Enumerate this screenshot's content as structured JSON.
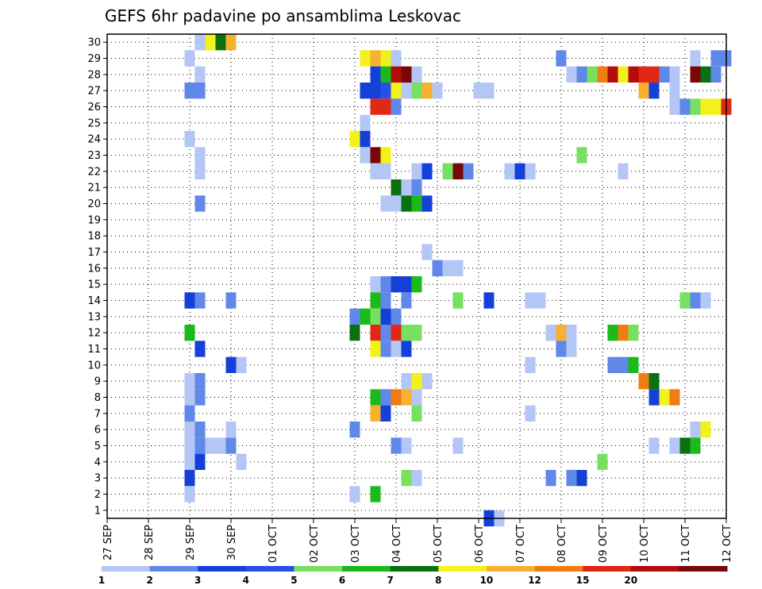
{
  "chart_data": {
    "type": "heatmap",
    "title": "GEFS 6hr padavine po ansamblima Leskovac",
    "x_tick_labels": [
      "27 SEP",
      "28 SEP",
      "29 SEP",
      "30 SEP",
      "01 OCT",
      "02 OCT",
      "03 OCT",
      "04 OCT",
      "05 OCT",
      "06 OCT",
      "07 OCT",
      "08 OCT",
      "09 OCT",
      "10 OCT",
      "11 OCT",
      "12 OCT"
    ],
    "y_tick_labels": [
      "1",
      "2",
      "3",
      "4",
      "5",
      "6",
      "7",
      "8",
      "9",
      "10",
      "11",
      "12",
      "13",
      "14",
      "15",
      "16",
      "17",
      "18",
      "19",
      "20",
      "21",
      "22",
      "23",
      "24",
      "25",
      "26",
      "27",
      "28",
      "29",
      "30"
    ],
    "xlim": [
      0,
      15
    ],
    "ylim": [
      0.5,
      30.5
    ],
    "time_step_days": 0.25,
    "grid": true,
    "colorbar": {
      "placement": "bottom",
      "labels": [
        "1",
        "2",
        "3",
        "4",
        "5",
        "6",
        "7",
        "8",
        "10",
        "12",
        "15",
        "20"
      ],
      "colors": [
        "#b4c6f6",
        "#6088e8",
        "#1440d8",
        "#2850e8",
        "#78e060",
        "#1aba1a",
        "#0a7010",
        "#f2f21a",
        "#f8b030",
        "#f07c14",
        "#e02814",
        "#b40c0c",
        "#780808"
      ]
    },
    "cells_note": "each cell: [x_day_offset_from_27_SEP, member, color_class_index]",
    "cells": [
      [
        2.25,
        30,
        0
      ],
      [
        2.5,
        30,
        7
      ],
      [
        2.75,
        30,
        6
      ],
      [
        3.0,
        30,
        8
      ],
      [
        2.0,
        29,
        0
      ],
      [
        6.25,
        29,
        7
      ],
      [
        6.5,
        29,
        8
      ],
      [
        6.75,
        29,
        7
      ],
      [
        7.0,
        29,
        0
      ],
      [
        11.0,
        29,
        1
      ],
      [
        14.25,
        29,
        0
      ],
      [
        14.75,
        29,
        1
      ],
      [
        15.0,
        29,
        1
      ],
      [
        2.25,
        28,
        0
      ],
      [
        6.5,
        28,
        2
      ],
      [
        6.75,
        28,
        5
      ],
      [
        7.0,
        28,
        11
      ],
      [
        7.25,
        28,
        12
      ],
      [
        7.5,
        28,
        0
      ],
      [
        11.25,
        28,
        0
      ],
      [
        11.5,
        28,
        1
      ],
      [
        11.75,
        28,
        4
      ],
      [
        12.0,
        28,
        9
      ],
      [
        12.25,
        28,
        11
      ],
      [
        12.5,
        28,
        7
      ],
      [
        12.75,
        28,
        11
      ],
      [
        13.0,
        28,
        10
      ],
      [
        13.25,
        28,
        10
      ],
      [
        13.5,
        28,
        1
      ],
      [
        13.75,
        28,
        0
      ],
      [
        14.25,
        28,
        12
      ],
      [
        14.5,
        28,
        6
      ],
      [
        14.75,
        28,
        1
      ],
      [
        2.0,
        27,
        1
      ],
      [
        2.25,
        27,
        1
      ],
      [
        6.25,
        27,
        2
      ],
      [
        6.5,
        27,
        2
      ],
      [
        6.75,
        27,
        3
      ],
      [
        7.0,
        27,
        7
      ],
      [
        7.25,
        27,
        0
      ],
      [
        7.5,
        27,
        4
      ],
      [
        7.75,
        27,
        8
      ],
      [
        8.0,
        27,
        0
      ],
      [
        9.0,
        27,
        0
      ],
      [
        9.25,
        27,
        0
      ],
      [
        13.0,
        27,
        8
      ],
      [
        13.25,
        27,
        2
      ],
      [
        13.75,
        27,
        0
      ],
      [
        6.5,
        26,
        10
      ],
      [
        6.75,
        26,
        10
      ],
      [
        7.0,
        26,
        1
      ],
      [
        13.75,
        26,
        0
      ],
      [
        14.0,
        26,
        1
      ],
      [
        14.25,
        26,
        4
      ],
      [
        14.5,
        26,
        7
      ],
      [
        14.75,
        26,
        7
      ],
      [
        15.0,
        26,
        10
      ],
      [
        6.25,
        25,
        0
      ],
      [
        2.0,
        24,
        0
      ],
      [
        6.0,
        24,
        7
      ],
      [
        6.25,
        24,
        2
      ],
      [
        2.25,
        23,
        0
      ],
      [
        6.25,
        23,
        0
      ],
      [
        6.5,
        23,
        12
      ],
      [
        6.75,
        23,
        7
      ],
      [
        11.5,
        23,
        4
      ],
      [
        2.25,
        22,
        0
      ],
      [
        6.5,
        22,
        0
      ],
      [
        6.75,
        22,
        0
      ],
      [
        7.5,
        22,
        0
      ],
      [
        7.75,
        22,
        2
      ],
      [
        8.25,
        22,
        4
      ],
      [
        8.5,
        22,
        12
      ],
      [
        8.75,
        22,
        1
      ],
      [
        9.75,
        22,
        0
      ],
      [
        10.0,
        22,
        2
      ],
      [
        10.25,
        22,
        0
      ],
      [
        12.5,
        22,
        0
      ],
      [
        7.0,
        21,
        6
      ],
      [
        7.25,
        21,
        0
      ],
      [
        7.5,
        21,
        1
      ],
      [
        2.25,
        20,
        1
      ],
      [
        6.75,
        20,
        0
      ],
      [
        7.0,
        20,
        0
      ],
      [
        7.25,
        20,
        6
      ],
      [
        7.5,
        20,
        5
      ],
      [
        7.75,
        20,
        2
      ],
      [
        7.75,
        17,
        0
      ],
      [
        8.0,
        16,
        1
      ],
      [
        8.25,
        16,
        0
      ],
      [
        8.5,
        16,
        0
      ],
      [
        6.5,
        15,
        0
      ],
      [
        6.75,
        15,
        1
      ],
      [
        7.0,
        15,
        2
      ],
      [
        7.25,
        15,
        2
      ],
      [
        7.5,
        15,
        5
      ],
      [
        2.0,
        14,
        2
      ],
      [
        2.25,
        14,
        1
      ],
      [
        3.0,
        14,
        1
      ],
      [
        6.5,
        14,
        5
      ],
      [
        6.75,
        14,
        1
      ],
      [
        7.25,
        14,
        1
      ],
      [
        8.5,
        14,
        4
      ],
      [
        9.25,
        14,
        2
      ],
      [
        10.25,
        14,
        0
      ],
      [
        10.5,
        14,
        0
      ],
      [
        14.0,
        14,
        4
      ],
      [
        14.25,
        14,
        1
      ],
      [
        14.5,
        14,
        0
      ],
      [
        6.0,
        13,
        1
      ],
      [
        6.25,
        13,
        5
      ],
      [
        6.5,
        13,
        4
      ],
      [
        6.75,
        13,
        2
      ],
      [
        7.0,
        13,
        1
      ],
      [
        2.0,
        12,
        5
      ],
      [
        6.0,
        12,
        6
      ],
      [
        6.5,
        12,
        10
      ],
      [
        6.75,
        12,
        1
      ],
      [
        7.0,
        12,
        10
      ],
      [
        7.25,
        12,
        4
      ],
      [
        7.5,
        12,
        4
      ],
      [
        10.75,
        12,
        0
      ],
      [
        11.0,
        12,
        8
      ],
      [
        11.25,
        12,
        0
      ],
      [
        12.25,
        12,
        5
      ],
      [
        12.5,
        12,
        9
      ],
      [
        12.75,
        12,
        4
      ],
      [
        2.25,
        11,
        2
      ],
      [
        6.5,
        11,
        7
      ],
      [
        6.75,
        11,
        1
      ],
      [
        7.0,
        11,
        0
      ],
      [
        7.25,
        11,
        2
      ],
      [
        11.0,
        11,
        1
      ],
      [
        11.25,
        11,
        0
      ],
      [
        3.0,
        10,
        2
      ],
      [
        3.25,
        10,
        0
      ],
      [
        10.25,
        10,
        0
      ],
      [
        12.25,
        10,
        1
      ],
      [
        12.5,
        10,
        1
      ],
      [
        12.75,
        10,
        5
      ],
      [
        2.0,
        9,
        0
      ],
      [
        2.25,
        9,
        1
      ],
      [
        7.25,
        9,
        0
      ],
      [
        7.5,
        9,
        7
      ],
      [
        7.75,
        9,
        0
      ],
      [
        13.0,
        9,
        9
      ],
      [
        13.25,
        9,
        6
      ],
      [
        2.0,
        8,
        0
      ],
      [
        2.25,
        8,
        1
      ],
      [
        6.5,
        8,
        5
      ],
      [
        6.75,
        8,
        1
      ],
      [
        7.0,
        8,
        9
      ],
      [
        7.25,
        8,
        8
      ],
      [
        7.5,
        8,
        0
      ],
      [
        13.25,
        8,
        2
      ],
      [
        13.5,
        8,
        7
      ],
      [
        13.75,
        8,
        9
      ],
      [
        2.0,
        7,
        1
      ],
      [
        6.5,
        7,
        8
      ],
      [
        6.75,
        7,
        2
      ],
      [
        7.5,
        7,
        4
      ],
      [
        10.25,
        7,
        0
      ],
      [
        2.0,
        6,
        0
      ],
      [
        2.25,
        6,
        1
      ],
      [
        3.0,
        6,
        0
      ],
      [
        6.0,
        6,
        1
      ],
      [
        14.25,
        6,
        0
      ],
      [
        14.5,
        6,
        7
      ],
      [
        2.0,
        5,
        0
      ],
      [
        2.25,
        5,
        1
      ],
      [
        2.5,
        5,
        0
      ],
      [
        2.75,
        5,
        0
      ],
      [
        3.0,
        5,
        1
      ],
      [
        7.0,
        5,
        1
      ],
      [
        7.25,
        5,
        0
      ],
      [
        8.5,
        5,
        0
      ],
      [
        13.25,
        5,
        0
      ],
      [
        13.75,
        5,
        0
      ],
      [
        14.0,
        5,
        6
      ],
      [
        14.25,
        5,
        5
      ],
      [
        2.0,
        4,
        0
      ],
      [
        2.25,
        4,
        2
      ],
      [
        3.25,
        4,
        0
      ],
      [
        12.0,
        4,
        4
      ],
      [
        2.0,
        3,
        2
      ],
      [
        7.25,
        3,
        4
      ],
      [
        7.5,
        3,
        0
      ],
      [
        10.75,
        3,
        1
      ],
      [
        11.25,
        3,
        1
      ],
      [
        11.5,
        3,
        2
      ],
      [
        2.0,
        2,
        0
      ],
      [
        6.0,
        2,
        0
      ],
      [
        6.5,
        2,
        5
      ],
      [
        9.25,
        0.5,
        2
      ],
      [
        9.5,
        0.5,
        0
      ]
    ]
  }
}
